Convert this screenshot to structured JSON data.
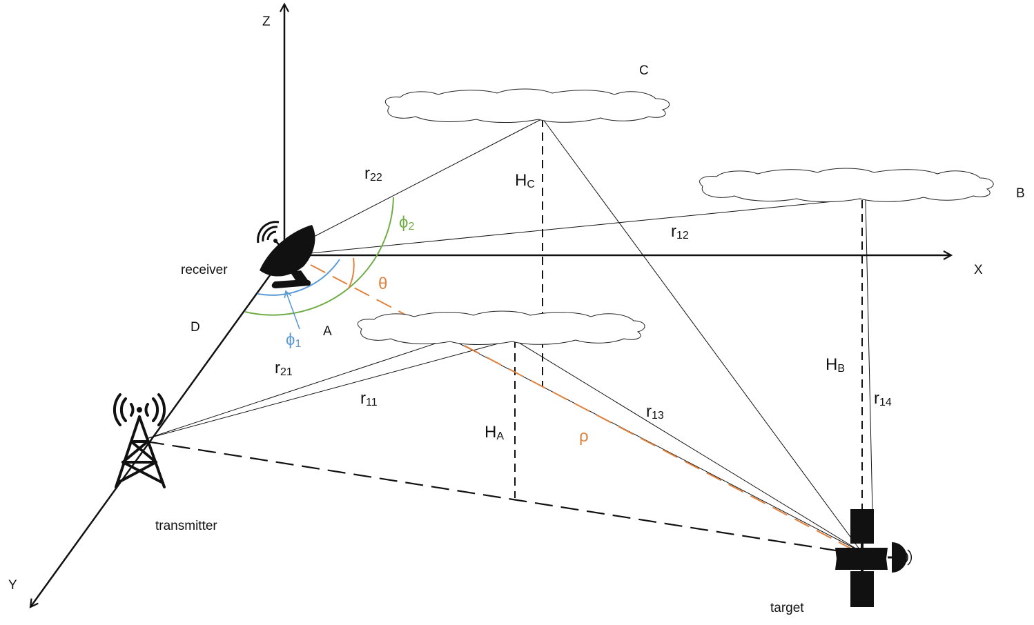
{
  "colors": {
    "line": "#111111",
    "orange": "#E2813C",
    "green": "#70AD47",
    "blue": "#5B9BD5"
  },
  "axes": {
    "x": "X",
    "y": "Y",
    "z": "Z"
  },
  "nodes": {
    "receiver": "receiver",
    "transmitter": "transmitter",
    "target": "target"
  },
  "clouds": {
    "a": "A",
    "b": "B",
    "c": "C"
  },
  "labels": {
    "d": "D",
    "theta": "θ",
    "rho": "ρ",
    "phi1": {
      "base": "ϕ",
      "sub": "1"
    },
    "phi2": {
      "base": "ϕ",
      "sub": "2"
    },
    "r11": {
      "base": "r",
      "sub": "11"
    },
    "r12": {
      "base": "r",
      "sub": "12"
    },
    "r13": {
      "base": "r",
      "sub": "13"
    },
    "r14": {
      "base": "r",
      "sub": "14"
    },
    "r21": {
      "base": "r",
      "sub": "21"
    },
    "r22": {
      "base": "r",
      "sub": "22"
    },
    "ha": {
      "base": "H",
      "sub": "A"
    },
    "hb": {
      "base": "H",
      "sub": "B"
    },
    "hc": {
      "base": "H",
      "sub": "C"
    }
  }
}
